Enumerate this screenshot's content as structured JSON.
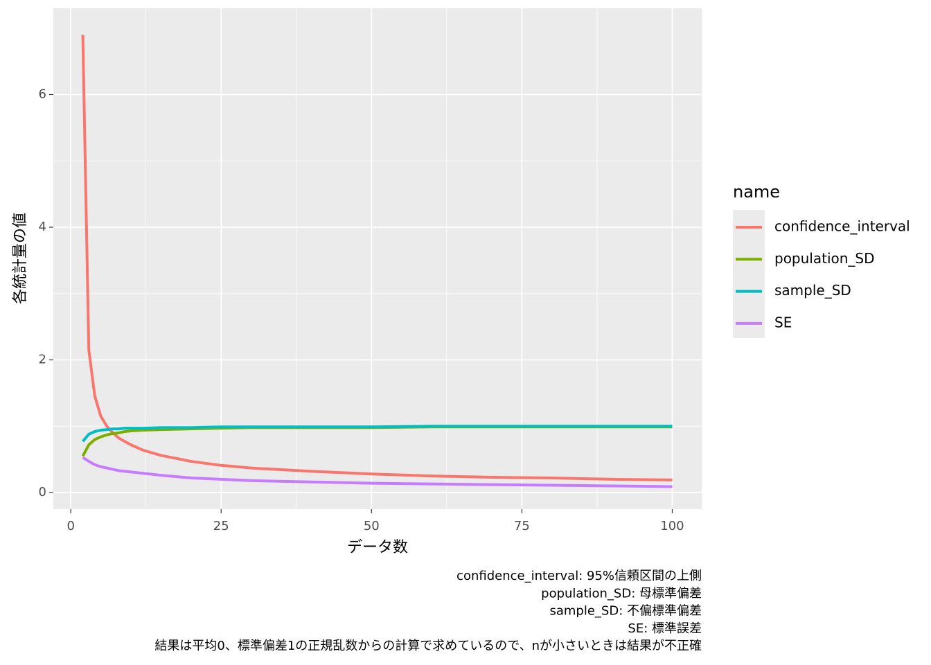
{
  "chart_data": {
    "type": "line",
    "x_label": "データ数",
    "y_label": "各統計量の値",
    "legend_title": "name",
    "legend_position": "right",
    "grid": true,
    "x": [
      2,
      3,
      4,
      5,
      6,
      7,
      8,
      9,
      10,
      12,
      15,
      20,
      25,
      30,
      40,
      50,
      60,
      70,
      80,
      90,
      100
    ],
    "series": [
      {
        "name": "confidence_interval",
        "color": "#F8766D",
        "values": [
          6.9,
          2.15,
          1.45,
          1.15,
          1.0,
          0.9,
          0.82,
          0.77,
          0.72,
          0.64,
          0.56,
          0.47,
          0.41,
          0.37,
          0.32,
          0.28,
          0.25,
          0.23,
          0.22,
          0.2,
          0.19
        ]
      },
      {
        "name": "population_SD",
        "color": "#7CAE00",
        "values": [
          0.55,
          0.72,
          0.8,
          0.84,
          0.87,
          0.89,
          0.9,
          0.92,
          0.93,
          0.94,
          0.95,
          0.96,
          0.97,
          0.98,
          0.98,
          0.98,
          0.99,
          0.99,
          0.99,
          0.99,
          0.99
        ]
      },
      {
        "name": "sample_SD",
        "color": "#00BFC4",
        "values": [
          0.77,
          0.88,
          0.92,
          0.94,
          0.95,
          0.96,
          0.96,
          0.97,
          0.97,
          0.97,
          0.98,
          0.98,
          0.99,
          0.99,
          0.99,
          0.99,
          1.0,
          1.0,
          1.0,
          1.0,
          1.0
        ]
      },
      {
        "name": "SE",
        "color": "#C77CFF",
        "values": [
          0.53,
          0.47,
          0.42,
          0.39,
          0.37,
          0.35,
          0.33,
          0.32,
          0.31,
          0.29,
          0.26,
          0.22,
          0.2,
          0.18,
          0.16,
          0.14,
          0.13,
          0.12,
          0.11,
          0.1,
          0.09
        ]
      }
    ],
    "xlim": [
      -2.9,
      104.9
    ],
    "xticks": [
      0,
      25,
      50,
      75,
      100
    ],
    "ylim": [
      -0.25,
      7.3
    ],
    "yticks": [
      0,
      2,
      4,
      6
    ],
    "caption": [
      "confidence_interval: 95%信頼区間の上側",
      "population_SD: 母標準偏差",
      "sample_SD: 不偏標準偏差",
      "SE: 標準誤差",
      "結果は平均0、標準偏差1の正規乱数からの計算で求めているので、nが小さいときは結果が不正確"
    ]
  }
}
